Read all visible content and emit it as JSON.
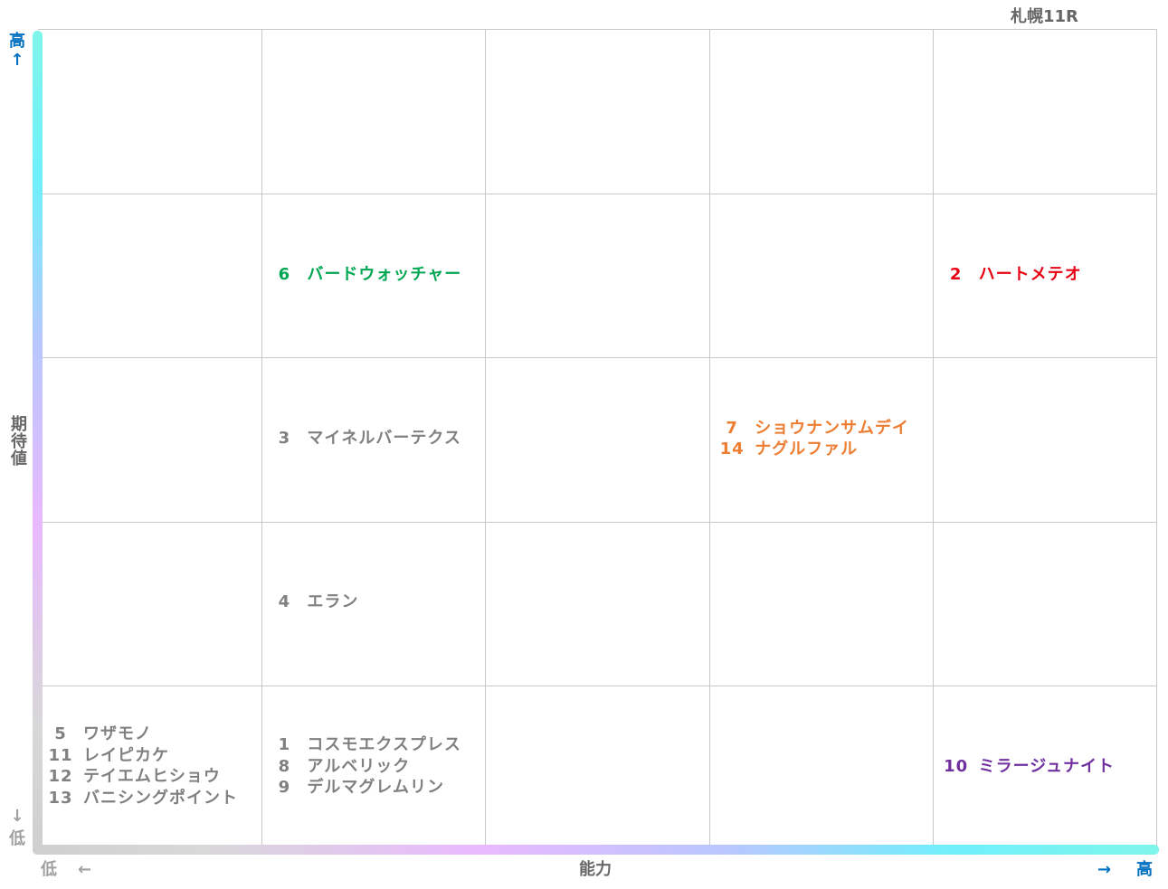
{
  "chart_data": {
    "type": "scatter",
    "title": "札幌11R",
    "xlabel": "能力",
    "ylabel": "期待値",
    "x_low_label": "低",
    "x_high_label": "高",
    "y_low_label": "低",
    "y_high_label": "高",
    "x_left_arrow": "←",
    "x_right_arrow": "→",
    "y_up_arrow": "↑",
    "y_down_arrow": "↓",
    "grid": true,
    "groups": [
      {
        "col": 2,
        "row": 2,
        "color": "#00a651",
        "entries": [
          {
            "no": "6",
            "name": "バードウォッチャー"
          }
        ]
      },
      {
        "col": 5,
        "row": 2,
        "color": "#e60012",
        "entries": [
          {
            "no": "2",
            "name": "ハートメテオ"
          }
        ]
      },
      {
        "col": 2,
        "row": 3,
        "color": "#808080",
        "entries": [
          {
            "no": "3",
            "name": "マイネルバーテクス"
          }
        ]
      },
      {
        "col": 4,
        "row": 3,
        "color": "#ed7d31",
        "entries": [
          {
            "no": "7",
            "name": "ショウナンサムデイ"
          },
          {
            "no": "14",
            "name": "ナグルファル"
          }
        ]
      },
      {
        "col": 2,
        "row": 4,
        "color": "#808080",
        "entries": [
          {
            "no": "4",
            "name": "エラン"
          }
        ]
      },
      {
        "col": 1,
        "row": 5,
        "color": "#808080",
        "entries": [
          {
            "no": "5",
            "name": "ワザモノ"
          },
          {
            "no": "11",
            "name": "レイピカケ"
          },
          {
            "no": "12",
            "name": "テイエムヒショウ"
          },
          {
            "no": "13",
            "name": "バニシングポイント"
          }
        ]
      },
      {
        "col": 2,
        "row": 5,
        "color": "#808080",
        "entries": [
          {
            "no": "1",
            "name": "コスモエクスプレス"
          },
          {
            "no": "8",
            "name": "アルベリック"
          },
          {
            "no": "9",
            "name": "デルマグレムリン"
          }
        ]
      },
      {
        "col": 5,
        "row": 5,
        "color": "#7030a0",
        "entries": [
          {
            "no": "10",
            "name": "ミラージュナイト"
          }
        ]
      }
    ]
  },
  "colors": {
    "y_high": "#0070c0",
    "y_low": "#a0a0a0",
    "x_low": "#a0a0a0",
    "x_high": "#0070c0",
    "axis_label": "#666666"
  }
}
